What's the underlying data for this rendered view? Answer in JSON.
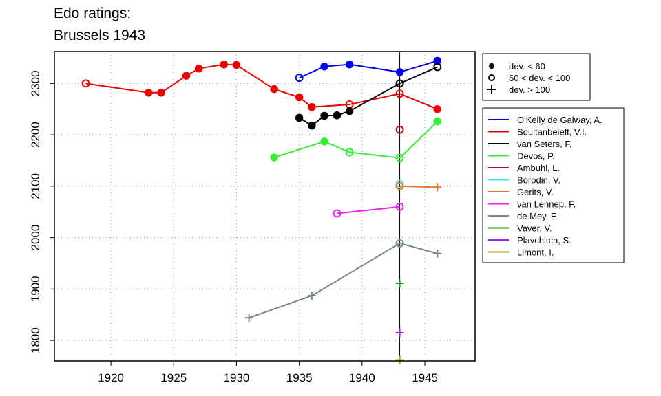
{
  "chart_data": {
    "type": "line",
    "title": [
      "Edo ratings:",
      "Brussels 1943"
    ],
    "xlabel": "",
    "ylabel": "",
    "xlim": [
      1915.5,
      1949
    ],
    "ylim": [
      1760,
      2362
    ],
    "xticks": [
      1920,
      1925,
      1930,
      1935,
      1940,
      1945
    ],
    "yticks": [
      1800,
      1900,
      2000,
      2100,
      2200,
      2300
    ],
    "grid": true,
    "reference_line_x": 1943,
    "marker_legend": [
      {
        "marker": "filled",
        "label": "dev. < 60"
      },
      {
        "marker": "open",
        "label": "60 < dev. < 100"
      },
      {
        "marker": "plus",
        "label": "dev. > 100"
      }
    ],
    "legend_placement": "right",
    "series": [
      {
        "name": "O'Kelly de Galway, A.",
        "color": "#0000ee",
        "points": [
          [
            1935,
            2311,
            "open"
          ],
          [
            1937,
            2333,
            "filled"
          ],
          [
            1939,
            2337,
            "filled"
          ],
          [
            1943,
            2322,
            "filled"
          ],
          [
            1946,
            2344,
            "filled"
          ]
        ]
      },
      {
        "name": "Soultanbeieff, V.I.",
        "color": "#ee0000",
        "points": [
          [
            1918,
            2300,
            "open"
          ],
          [
            1923,
            2282,
            "filled"
          ],
          [
            1924,
            2282,
            "filled"
          ],
          [
            1926,
            2315,
            "filled"
          ],
          [
            1927,
            2329,
            "filled"
          ],
          [
            1929,
            2337,
            "filled"
          ],
          [
            1930,
            2336,
            "filled"
          ],
          [
            1933,
            2289,
            "filled"
          ],
          [
            1935,
            2273,
            "filled"
          ],
          [
            1936,
            2254,
            "filled"
          ],
          [
            1939,
            2259,
            "open"
          ],
          [
            1943,
            2280,
            "open"
          ],
          [
            1946,
            2250,
            "filled"
          ]
        ]
      },
      {
        "name": "van Seters, F.",
        "color": "#000000",
        "points": [
          [
            1935,
            2233,
            "filled"
          ],
          [
            1936,
            2218,
            "filled"
          ],
          [
            1937,
            2237,
            "filled"
          ],
          [
            1938,
            2238,
            "filled"
          ],
          [
            1939,
            2246,
            "filled"
          ],
          [
            1943,
            2300,
            "open"
          ],
          [
            1946,
            2332,
            "open"
          ]
        ]
      },
      {
        "name": "Devos, P.",
        "color": "#33ee33",
        "points": [
          [
            1933,
            2156,
            "filled"
          ],
          [
            1937,
            2187,
            "filled"
          ],
          [
            1939,
            2166,
            "open"
          ],
          [
            1943,
            2155,
            "open"
          ],
          [
            1946,
            2226,
            "filled"
          ]
        ]
      },
      {
        "name": "Ambuhl, L.",
        "color": "#aa1122",
        "points": [
          [
            1943,
            2210,
            "open"
          ]
        ]
      },
      {
        "name": "Borodin, V.",
        "color": "#33eeee",
        "points": [
          [
            1943,
            2104,
            "open"
          ]
        ]
      },
      {
        "name": "Gerits, V.",
        "color": "#ee7722",
        "points": [
          [
            1943,
            2100,
            "open"
          ],
          [
            1946,
            2098,
            "plus"
          ]
        ]
      },
      {
        "name": "van Lennep, F.",
        "color": "#ee22ee",
        "points": [
          [
            1938,
            2047,
            "open"
          ],
          [
            1943,
            2060,
            "open"
          ]
        ]
      },
      {
        "name": "de Mey, E.",
        "color": "#778888",
        "points": [
          [
            1931,
            1844,
            "plus"
          ],
          [
            1936,
            1887,
            "plus"
          ],
          [
            1943,
            1989,
            "open"
          ],
          [
            1946,
            1969,
            "plus"
          ]
        ]
      },
      {
        "name": "Vaver, V.",
        "color": "#229922",
        "points": [
          [
            1943,
            1911,
            "plus"
          ]
        ]
      },
      {
        "name": "Plavchitch, S.",
        "color": "#9922ee",
        "points": [
          [
            1943,
            1815,
            "plus"
          ]
        ]
      },
      {
        "name": "Limont, I.",
        "color": "#aa9922",
        "points": [
          [
            1943,
            1762,
            "plus"
          ]
        ]
      }
    ]
  }
}
